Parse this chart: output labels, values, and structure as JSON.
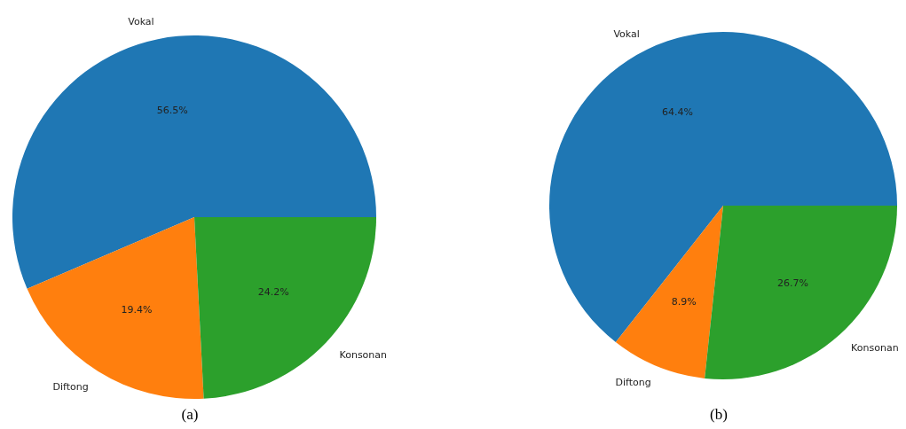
{
  "chart_data": [
    {
      "type": "pie",
      "categories": [
        "Vokal",
        "Diftong",
        "Konsonan"
      ],
      "values": [
        56.5,
        19.4,
        24.2
      ],
      "colors": [
        "#1f77b4",
        "#ff7f0e",
        "#2ca02c"
      ],
      "value_labels": [
        "56.5%",
        "19.4%",
        "24.2%"
      ],
      "annotations": [
        "(a)"
      ]
    },
    {
      "type": "pie",
      "categories": [
        "Vokal",
        "Diftong",
        "Konsonan"
      ],
      "values": [
        64.4,
        8.9,
        26.7
      ],
      "colors": [
        "#1f77b4",
        "#ff7f0e",
        "#2ca02c"
      ],
      "value_labels": [
        "64.4%",
        "8.9%",
        "26.7%"
      ],
      "annotations": [
        "(b)"
      ]
    }
  ]
}
